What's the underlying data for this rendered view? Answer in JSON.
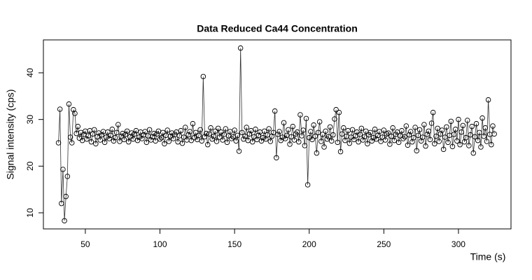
{
  "chart_data": {
    "type": "scatter",
    "title": "Data Reduced Ca44 Concentration",
    "x_label": "Time (s)",
    "y_label": "Signal intensity (cps)",
    "connect_points": true,
    "color": "#000000",
    "xlim": [
      21.9,
      335.2
    ],
    "ylim": [
      6.55,
      47.05
    ],
    "xticks": [
      50,
      100,
      150,
      200,
      250,
      300
    ],
    "yticks": [
      10,
      20,
      30,
      40
    ],
    "x": [
      32,
      33,
      34,
      35,
      36,
      37,
      38,
      39,
      40,
      41,
      42,
      43,
      44,
      45,
      46,
      47,
      48,
      49,
      50,
      51,
      52,
      53,
      54,
      55,
      56,
      57,
      58,
      59,
      60,
      61,
      62,
      63,
      64,
      65,
      66,
      67,
      68,
      69,
      70,
      71,
      72,
      73,
      74,
      75,
      76,
      77,
      78,
      79,
      80,
      81,
      82,
      83,
      84,
      85,
      86,
      87,
      88,
      89,
      90,
      91,
      92,
      93,
      94,
      95,
      96,
      97,
      98,
      99,
      100,
      101,
      102,
      103,
      104,
      105,
      106,
      107,
      108,
      109,
      110,
      111,
      112,
      113,
      114,
      115,
      116,
      117,
      118,
      119,
      120,
      121,
      122,
      123,
      124,
      125,
      126,
      127,
      128,
      129,
      130,
      131,
      132,
      133,
      134,
      135,
      136,
      137,
      138,
      139,
      140,
      141,
      142,
      143,
      144,
      145,
      146,
      147,
      148,
      149,
      150,
      151,
      152,
      153,
      154,
      155,
      156,
      157,
      158,
      159,
      160,
      161,
      162,
      163,
      164,
      165,
      166,
      167,
      168,
      169,
      170,
      171,
      172,
      173,
      174,
      175,
      176,
      177,
      178,
      179,
      180,
      181,
      182,
      183,
      184,
      185,
      186,
      187,
      188,
      189,
      190,
      191,
      192,
      193,
      194,
      195,
      196,
      197,
      198,
      199,
      200,
      201,
      202,
      203,
      204,
      205,
      206,
      207,
      208,
      209,
      210,
      211,
      212,
      213,
      214,
      215,
      216,
      217,
      218,
      219,
      220,
      221,
      222,
      223,
      224,
      225,
      226,
      227,
      228,
      229,
      230,
      231,
      232,
      233,
      234,
      235,
      236,
      237,
      238,
      239,
      240,
      241,
      242,
      243,
      244,
      245,
      246,
      247,
      248,
      249,
      250,
      251,
      252,
      253,
      254,
      255,
      256,
      257,
      258,
      259,
      260,
      261,
      262,
      263,
      264,
      265,
      266,
      267,
      268,
      269,
      270,
      271,
      272,
      273,
      274,
      275,
      276,
      277,
      278,
      279,
      280,
      281,
      282,
      283,
      284,
      285,
      286,
      287,
      288,
      289,
      290,
      291,
      292,
      293,
      294,
      295,
      296,
      297,
      298,
      299,
      300,
      301,
      302,
      303,
      304,
      305,
      306,
      307,
      308,
      309,
      310,
      311,
      312,
      313,
      314,
      315,
      316,
      317,
      318,
      319,
      320,
      321,
      322,
      323,
      324
    ],
    "values": [
      25,
      32.2,
      12,
      19.3,
      8.3,
      13.5,
      17.8,
      33.3,
      26.2,
      25,
      32.1,
      31.3,
      27,
      28.5,
      26,
      27.2,
      25.5,
      26.8,
      27.5,
      25.8,
      26.5,
      27.6,
      25.2,
      26.9,
      27.8,
      24.8,
      26.3,
      27.1,
      25.6,
      26.7,
      27.4,
      25.1,
      26.2,
      27.3,
      25.9,
      26.6,
      27.9,
      25.4,
      26.1,
      27.2,
      28.9,
      25.3,
      26.4,
      27,
      25.7,
      26.8,
      27.5,
      25.2,
      26.3,
      27.1,
      25.8,
      26.9,
      27.6,
      25.5,
      26.2,
      27.3,
      25.9,
      26.7,
      27.4,
      25.1,
      26.5,
      27.8,
      25.6,
      26.3,
      27,
      25.4,
      26.9,
      27.5,
      25.8,
      26.1,
      27.2,
      24.8,
      26.6,
      27.7,
      25.3,
      26.4,
      27.1,
      25.9,
      26.8,
      27.3,
      25.2,
      26.5,
      27.6,
      24.9,
      26.2,
      28.3,
      25.6,
      26.7,
      27.4,
      25.5,
      29.1,
      26.1,
      27.2,
      25.7,
      26.6,
      27.8,
      25.4,
      39.2,
      26.3,
      27,
      24.6,
      26.9,
      28.2,
      25.8,
      26.4,
      27.5,
      25.3,
      28.1,
      26.2,
      27.3,
      25.6,
      26.8,
      28,
      25.1,
      26.5,
      27.4,
      25.9,
      26.3,
      27.7,
      25.4,
      26.6,
      23.2,
      45.3,
      27.2,
      25.8,
      26.4,
      28.3,
      25.5,
      26.9,
      27.6,
      25.2,
      26.3,
      27.9,
      25.7,
      26.6,
      27.3,
      25.4,
      26.1,
      27.5,
      25.8,
      26.7,
      28,
      25.3,
      26.4,
      27.2,
      31.8,
      21.8,
      26.8,
      27.4,
      25.5,
      26.2,
      29.3,
      25.9,
      26.6,
      27.8,
      24.7,
      26.3,
      28.5,
      25.6,
      26.9,
      27.3,
      25.2,
      31,
      26.5,
      27.7,
      24.4,
      30.2,
      16,
      26.1,
      27.4,
      25.7,
      28.8,
      26.4,
      22.8,
      27.2,
      29.5,
      25.3,
      26.8,
      24.1,
      27.5,
      25.8,
      26.3,
      28.4,
      25.4,
      26.7,
      30.1,
      32.1,
      25.1,
      31.5,
      23.1,
      26.9,
      28.2,
      25.5,
      26.4,
      27.6,
      24.9,
      26.2,
      27.8,
      25.7,
      26.5,
      27.3,
      25.2,
      26.8,
      28.1,
      25.6,
      26.3,
      27.5,
      24.8,
      26.7,
      27.2,
      25.4,
      26.1,
      27.9,
      25.8,
      26.6,
      27.4,
      25.3,
      26.2,
      27.7,
      25.6,
      26.9,
      27.1,
      24.7,
      26.4,
      28.2,
      25.5,
      26.8,
      27.3,
      25.1,
      26.5,
      27.6,
      25.9,
      26.3,
      28.6,
      24.5,
      26.7,
      27.4,
      25.2,
      26.1,
      28.3,
      23.3,
      26.6,
      27.8,
      25.4,
      26.2,
      28.9,
      24.3,
      26.8,
      27.5,
      25.7,
      29.2,
      31.5,
      24.8,
      26.4,
      28.1,
      25.3,
      26.9,
      27.7,
      23.6,
      26.2,
      28.4,
      25.1,
      26.6,
      29.6,
      24.2,
      26.8,
      27.9,
      25.4,
      30,
      24.6,
      27.3,
      28.7,
      25.2,
      26.1,
      29.8,
      24.4,
      26.7,
      28.5,
      22.8,
      26.3,
      29.1,
      25.5,
      27.2,
      24.1,
      30.3,
      26.4,
      28.2,
      25.3,
      34.2,
      26.8,
      24.6,
      28.6,
      26.9
    ]
  }
}
